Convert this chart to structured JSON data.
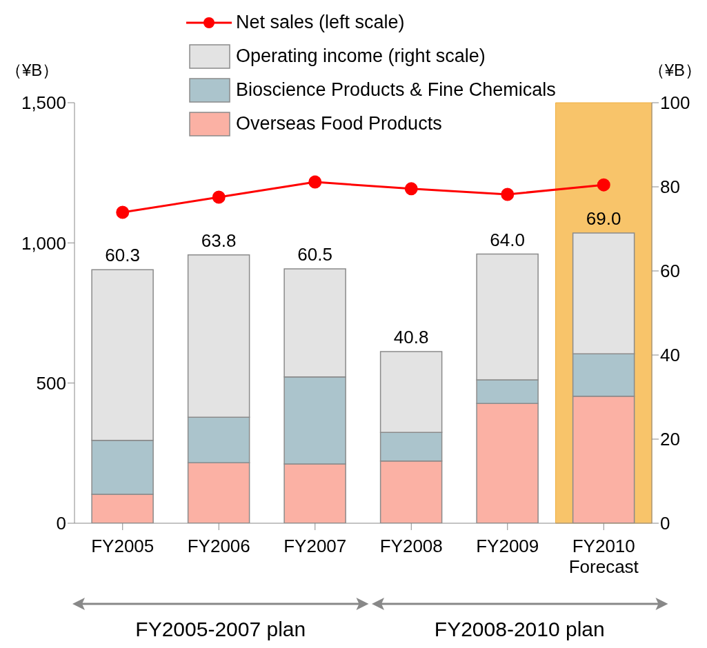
{
  "chart_data": {
    "type": "bar",
    "stacked": true,
    "categories": [
      "FY2005",
      "FY2006",
      "FY2007",
      "FY2008",
      "FY2009",
      "FY2010 Forecast"
    ],
    "series": [
      {
        "name": "Overseas Food Products",
        "color": "#fbb1a4",
        "axis": "y2",
        "values": [
          6.9,
          14.4,
          14.1,
          14.8,
          28.5,
          30.2
        ]
      },
      {
        "name": "Bioscience Products & Fine Chemicals",
        "color": "#abc4cc",
        "axis": "y2",
        "values": [
          12.8,
          10.8,
          20.7,
          6.8,
          5.6,
          10.1
        ]
      },
      {
        "name": "Operating income (right scale)",
        "color": "#e3e3e3",
        "axis": "y2",
        "values": [
          40.6,
          38.6,
          25.7,
          19.2,
          29.9,
          28.7
        ]
      },
      {
        "name": "Net sales (left scale)",
        "type": "line",
        "color": "#ff0000",
        "axis": "y",
        "values": [
          1109,
          1163,
          1217,
          1193,
          1173,
          1207
        ]
      }
    ],
    "totals": [
      "60.3",
      "63.8",
      "60.5",
      "40.8",
      "64.0",
      "69.0"
    ],
    "ylabel": "（¥B）",
    "y2label": "（¥B）",
    "ylim": [
      0,
      1500
    ],
    "yticks": [
      0,
      500,
      {
        "value": 1000,
        "label": "1,000"
      },
      {
        "value": 1500,
        "label": "1,500"
      }
    ],
    "y2lim": [
      0,
      100
    ],
    "y2ticks": [
      0,
      20,
      40,
      60,
      80,
      100
    ],
    "bands": [
      {
        "axis": "x",
        "from": "FY2010 Forecast",
        "to": "FY2010 Forecast",
        "color": "#f8c46a"
      }
    ],
    "annotations": [
      "FY2005-2007 plan",
      "FY2008-2010 plan"
    ],
    "marker": "circle",
    "line_style": "solid",
    "legend": "top"
  }
}
